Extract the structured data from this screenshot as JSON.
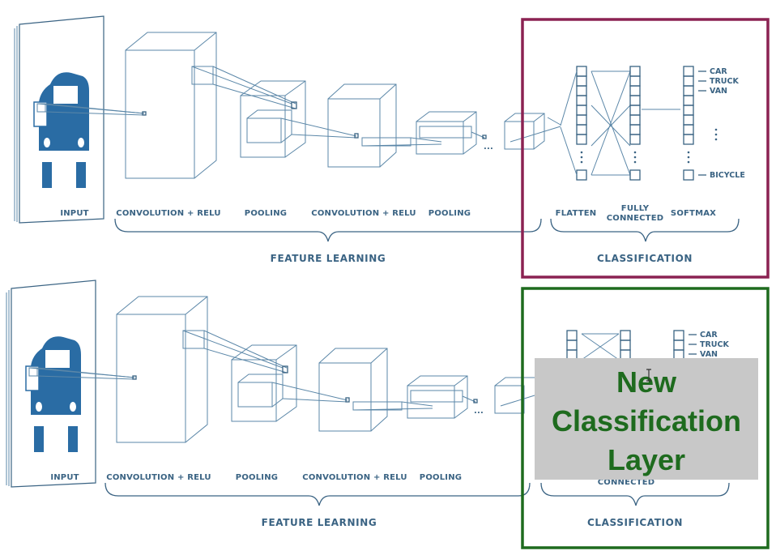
{
  "diagrams": [
    {
      "stage_labels": {
        "input": "INPUT",
        "conv1": "CONVOLUTION + RELU",
        "pool1": "POOLING",
        "conv2": "CONVOLUTION + RELU",
        "pool2": "POOLING",
        "flatten": "FLATTEN",
        "fully_connected_line1": "FULLY",
        "fully_connected_line2": "CONNECTED",
        "softmax": "SOFTMAX"
      },
      "sections": {
        "feature_learning": "FEATURE LEARNING",
        "classification": "CLASSIFICATION"
      },
      "outputs": [
        "CAR",
        "TRUCK",
        "VAN",
        "BICYCLE"
      ],
      "ellipsis": "...",
      "highlight_color": "#8b2252"
    },
    {
      "stage_labels": {
        "input": "INPUT",
        "conv1": "CONVOLUTION + RELU",
        "pool1": "POOLING",
        "conv2": "CONVOLUTION + RELU",
        "pool2": "POOLING",
        "connected": "CONNECTED"
      },
      "sections": {
        "feature_learning": "FEATURE LEARNING",
        "classification": "CLASSIFICATION"
      },
      "outputs": [
        "CAR",
        "TRUCK",
        "VAN"
      ],
      "ellipsis": "...",
      "highlight_color": "#1e6b1e",
      "overlay": {
        "line1": "New",
        "line2": "Classification",
        "line3": "Layer",
        "text_color": "#1e6b1e",
        "bg_color": "#c8c8c8"
      }
    }
  ]
}
